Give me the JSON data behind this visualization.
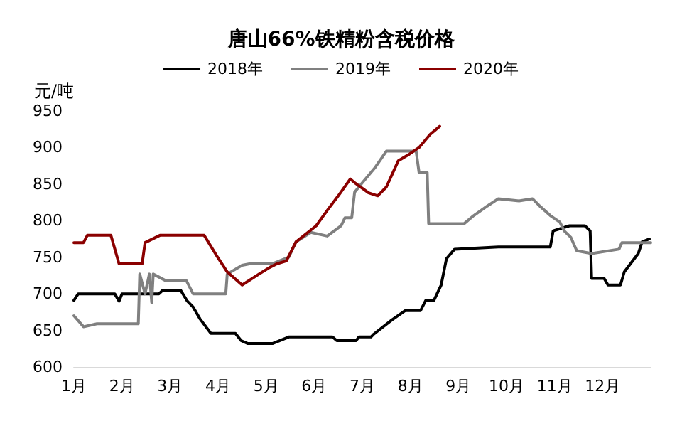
{
  "chart_data": {
    "type": "line",
    "title": "唐山66%铁精粉含税价格",
    "ylabel": "元/吨",
    "legend": "top",
    "grid": false,
    "marker": "none",
    "line_style": "solid",
    "xlim": [
      1,
      13
    ],
    "xticks": [
      {
        "value": 1,
        "label": "1月"
      },
      {
        "value": 2,
        "label": "2月"
      },
      {
        "value": 3,
        "label": "3月"
      },
      {
        "value": 4,
        "label": "4月"
      },
      {
        "value": 5,
        "label": "5月"
      },
      {
        "value": 6,
        "label": "6月"
      },
      {
        "value": 7,
        "label": "7月"
      },
      {
        "value": 8,
        "label": "8月"
      },
      {
        "value": 9,
        "label": "9月"
      },
      {
        "value": 10,
        "label": "10月"
      },
      {
        "value": 11,
        "label": "11月"
      },
      {
        "value": 12,
        "label": "12月"
      }
    ],
    "ylim": [
      600,
      950
    ],
    "yticks": [
      600,
      650,
      700,
      750,
      800,
      850,
      900,
      950
    ],
    "series": [
      {
        "name": "2018年",
        "color": "#000000",
        "x": [
          1.0,
          1.09,
          1.85,
          1.94,
          2.0,
          2.77,
          2.85,
          3.22,
          3.36,
          3.48,
          3.62,
          3.85,
          4.36,
          4.48,
          4.62,
          5.13,
          5.47,
          6.38,
          6.47,
          6.87,
          6.93,
          7.18,
          7.24,
          7.61,
          7.89,
          8.21,
          8.32,
          8.49,
          8.64,
          8.75,
          8.92,
          9.83,
          10.91,
          10.97,
          11.31,
          11.63,
          11.74,
          11.77,
          12.03,
          12.11,
          12.37,
          12.45,
          12.74,
          12.82,
          12.97
        ],
        "values": [
          691,
          700,
          700,
          690,
          700,
          700,
          705,
          705,
          690,
          682,
          666,
          646,
          646,
          636,
          632,
          632,
          641,
          641,
          636,
          636,
          641,
          641,
          645,
          664,
          677,
          677,
          691,
          691,
          712,
          748,
          761,
          764,
          764,
          786,
          793,
          793,
          786,
          721,
          721,
          712,
          712,
          730,
          755,
          771,
          775
        ]
      },
      {
        "name": "2019年",
        "color": "#808080",
        "x": [
          1.0,
          1.2,
          1.48,
          2.34,
          2.37,
          2.48,
          2.57,
          2.62,
          2.65,
          2.91,
          3.34,
          3.48,
          4.16,
          4.19,
          4.5,
          4.65,
          5.13,
          5.47,
          5.62,
          5.93,
          6.27,
          6.56,
          6.64,
          6.78,
          6.84,
          7.04,
          7.27,
          7.5,
          8.12,
          8.18,
          8.35,
          8.38,
          9.12,
          9.32,
          9.6,
          9.83,
          10.26,
          10.54,
          10.69,
          10.91,
          11.11,
          11.2,
          11.34,
          11.46,
          11.77,
          12.34,
          12.4,
          13.0
        ],
        "values": [
          670,
          655,
          659,
          659,
          727,
          700,
          727,
          688,
          727,
          718,
          718,
          700,
          700,
          727,
          739,
          741,
          741,
          750,
          771,
          784,
          779,
          793,
          804,
          804,
          839,
          855,
          873,
          895,
          895,
          866,
          866,
          796,
          796,
          807,
          820,
          830,
          827,
          830,
          820,
          807,
          798,
          786,
          777,
          759,
          755,
          761,
          770,
          770
        ]
      },
      {
        "name": "2020年",
        "color": "#8b0000",
        "x": [
          1.0,
          1.2,
          1.28,
          1.77,
          1.94,
          2.42,
          2.48,
          2.79,
          3.71,
          3.99,
          4.19,
          4.5,
          4.85,
          5.07,
          5.22,
          5.42,
          5.62,
          6.04,
          6.27,
          6.5,
          6.75,
          6.84,
          7.13,
          7.32,
          7.5,
          7.75,
          7.98,
          8.18,
          8.41,
          8.61
        ],
        "values": [
          770,
          770,
          780,
          780,
          741,
          741,
          770,
          780,
          780,
          750,
          730,
          712,
          727,
          736,
          741,
          745,
          771,
          793,
          814,
          834,
          857,
          852,
          838,
          834,
          846,
          882,
          891,
          900,
          918,
          929
        ]
      }
    ]
  }
}
